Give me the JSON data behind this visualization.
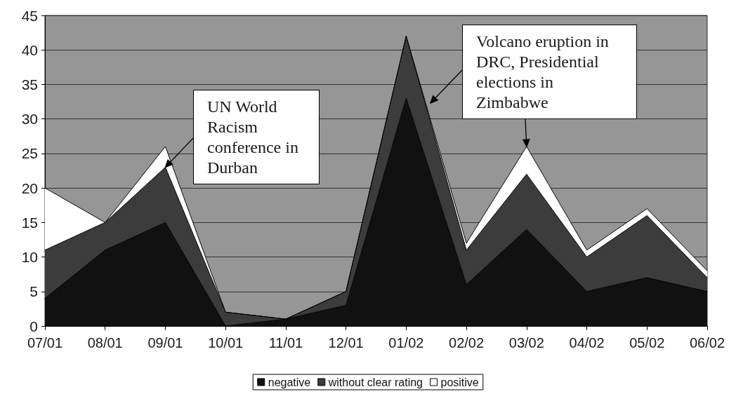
{
  "chart_data": {
    "type": "area",
    "stacked": true,
    "categories": [
      "07/01",
      "08/01",
      "09/01",
      "10/01",
      "11/01",
      "12/01",
      "01/02",
      "02/02",
      "03/02",
      "04/02",
      "05/02",
      "06/02"
    ],
    "series": [
      {
        "name": "negative",
        "color": "#111111",
        "values": [
          4,
          11,
          15,
          0,
          1,
          3,
          33,
          6,
          14,
          5,
          7,
          5
        ]
      },
      {
        "name": "without clear rating",
        "color": "#3c3c3c",
        "values": [
          7,
          4,
          8,
          2,
          0,
          2,
          9,
          5,
          8,
          5,
          9,
          2
        ]
      },
      {
        "name": "positive",
        "color": "#ffffff",
        "values": [
          9,
          0,
          3,
          0,
          0,
          0,
          0,
          1,
          4,
          1,
          1,
          1
        ]
      }
    ],
    "ylim": [
      0,
      45
    ],
    "yticks": [
      0,
      5,
      10,
      15,
      20,
      25,
      30,
      35,
      40,
      45
    ],
    "grid": "y",
    "legend": "bottom",
    "annotations": [
      {
        "text": "UN World Racism conference in Durban",
        "x": "09/01",
        "y": 23
      },
      {
        "text": "Volcano eruption in DRC, Presidential elections in Zimbabwe",
        "x": "03/02",
        "y": 26
      }
    ]
  }
}
